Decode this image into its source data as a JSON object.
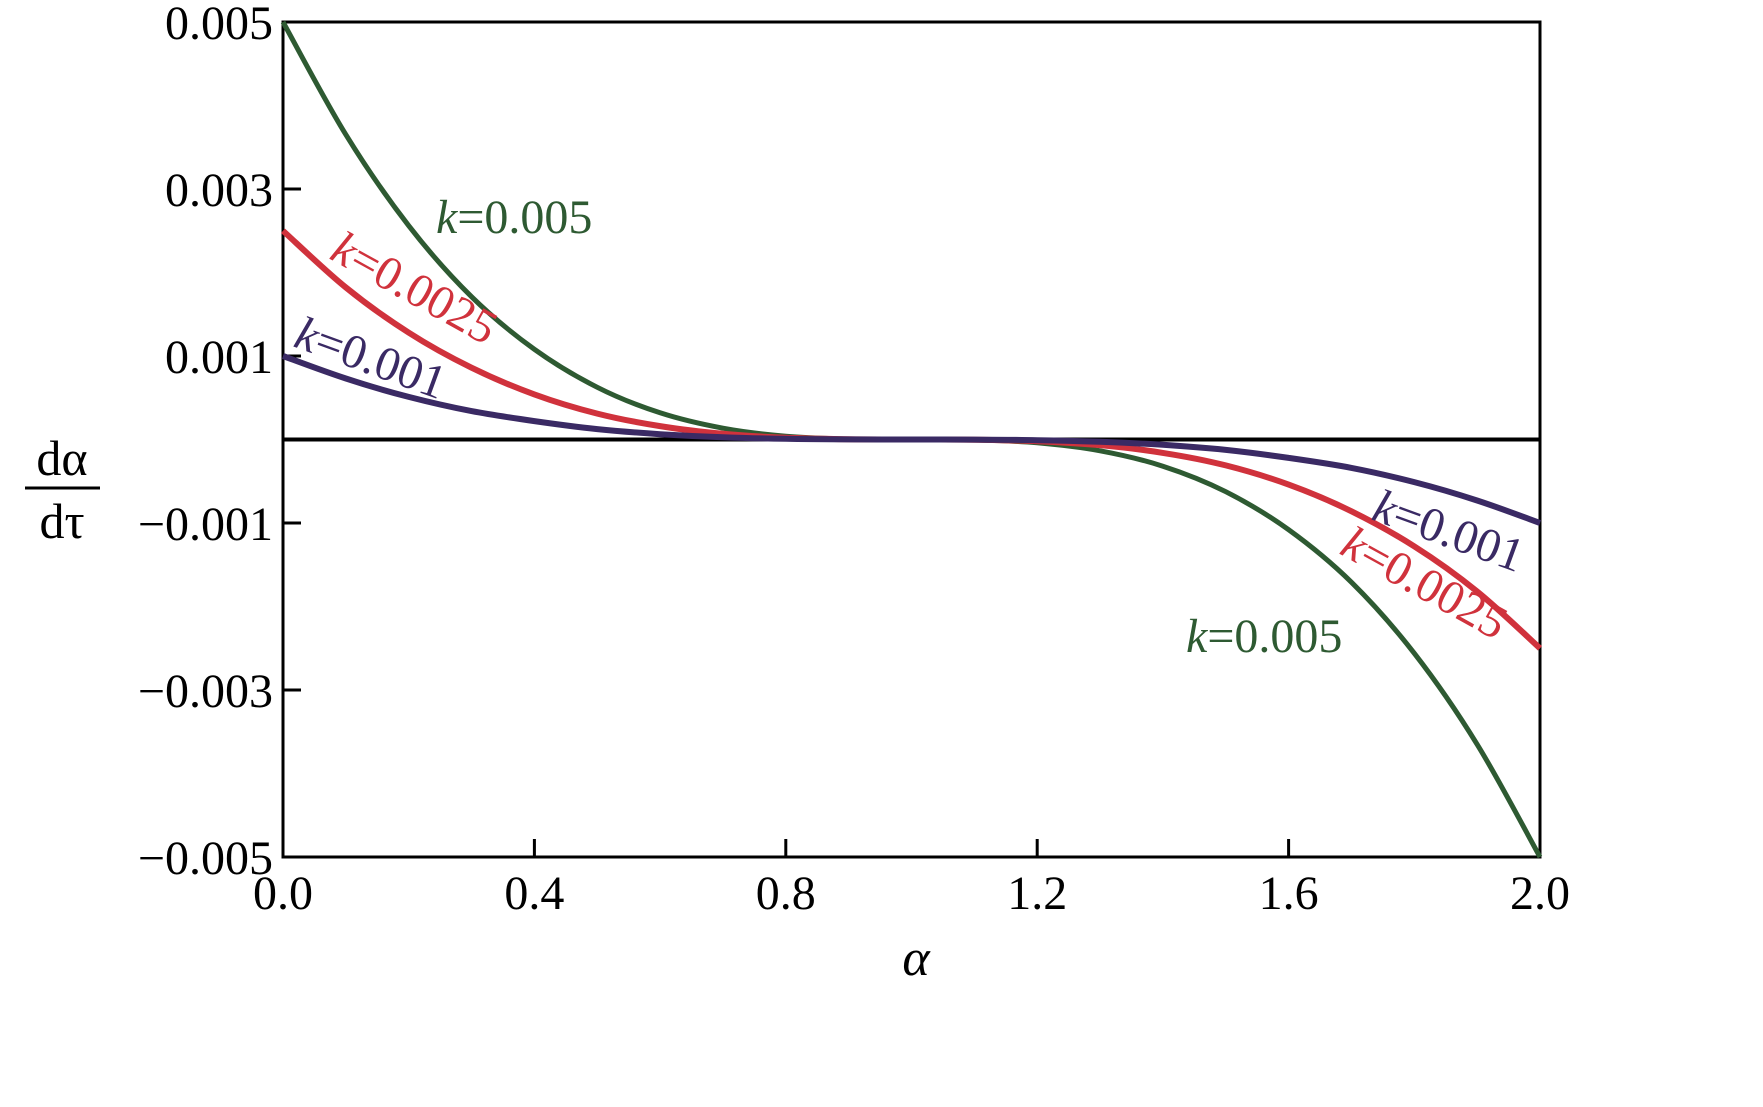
{
  "chart_data": {
    "type": "line",
    "title": "",
    "xlabel": "α",
    "ylabel": {
      "numerator": "dα",
      "denominator": "dτ"
    },
    "xlim": [
      0,
      2
    ],
    "ylim": [
      -0.005,
      0.005
    ],
    "x_ticks": [
      "0.0",
      "0.4",
      "0.8",
      "1.2",
      "1.6",
      "2.0"
    ],
    "x_tick_values": [
      0,
      0.4,
      0.8,
      1.2,
      1.6,
      2.0
    ],
    "y_ticks": [
      "0.005",
      "0.003",
      "0.001",
      "−0.001",
      "−0.003",
      "−0.005"
    ],
    "y_tick_values": [
      0.005,
      0.003,
      0.001,
      -0.001,
      -0.003,
      -0.005
    ],
    "grid": false,
    "legend": "none",
    "zero_line": 0,
    "series": [
      {
        "k": 0.005,
        "color": "#2e5a32",
        "label_left": "k=0.005",
        "label_right": "k=0.005",
        "x": [
          0,
          0.1,
          0.2,
          0.3,
          0.4,
          0.5,
          0.6,
          0.7,
          0.8,
          0.9,
          1.0,
          1.1,
          1.2,
          1.3,
          1.4,
          1.5,
          1.6,
          1.7,
          1.8,
          1.9,
          2.0
        ],
        "y": [
          0.005,
          0.00365,
          0.00256,
          0.00171,
          0.00108,
          0.000625,
          0.00032,
          0.000135,
          4e-05,
          5e-06,
          0,
          -5e-06,
          -4e-05,
          -0.000135,
          -0.00032,
          -0.000625,
          -0.00108,
          -0.00171,
          -0.00256,
          -0.00365,
          -0.005
        ]
      },
      {
        "k": 0.0025,
        "color": "#d0323c",
        "label_left": "k=0.0025",
        "label_right": "k=0.0025",
        "x": [
          0,
          0.1,
          0.2,
          0.3,
          0.4,
          0.5,
          0.6,
          0.7,
          0.8,
          0.9,
          1.0,
          1.1,
          1.2,
          1.3,
          1.4,
          1.5,
          1.6,
          1.7,
          1.8,
          1.9,
          2.0
        ],
        "y": [
          0.0025,
          0.00182,
          0.00128,
          0.00086,
          0.00054,
          0.00031,
          0.00016,
          6.8e-05,
          2e-05,
          2.5e-06,
          0,
          -2.5e-06,
          -2e-05,
          -6.8e-05,
          -0.00016,
          -0.00031,
          -0.00054,
          -0.00086,
          -0.00128,
          -0.00182,
          -0.0025
        ]
      },
      {
        "k": 0.001,
        "color": "#3a2a64",
        "label_left": "k=0.001",
        "label_right": "k=0.001",
        "x": [
          0,
          0.1,
          0.2,
          0.3,
          0.4,
          0.5,
          0.6,
          0.7,
          0.8,
          0.9,
          1.0,
          1.1,
          1.2,
          1.3,
          1.4,
          1.5,
          1.6,
          1.7,
          1.8,
          1.9,
          2.0
        ],
        "y": [
          0.001,
          0.00073,
          0.00051,
          0.00034,
          0.00022,
          0.000125,
          6.4e-05,
          2.7e-05,
          8e-06,
          1e-06,
          0,
          -1e-06,
          -8e-06,
          -2.7e-05,
          -6.4e-05,
          -0.000125,
          -0.00022,
          -0.00034,
          -0.00051,
          -0.00073,
          -0.001
        ]
      }
    ]
  }
}
